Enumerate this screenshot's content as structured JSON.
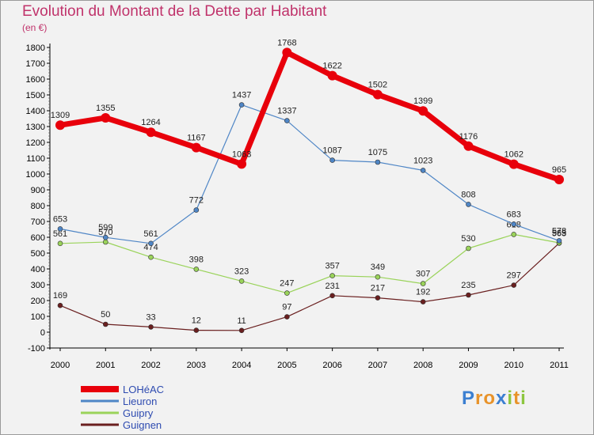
{
  "title": "Evolution du Montant de la Dette par Habitant",
  "subtitle": "(en €)",
  "logo": {
    "text": "Proxiti",
    "letters": [
      {
        "ch": "P",
        "color": "#3b7fd1"
      },
      {
        "ch": "r",
        "color": "#e8932a"
      },
      {
        "ch": "o",
        "color": "#e8932a"
      },
      {
        "ch": "x",
        "color": "#3b7fd1"
      },
      {
        "ch": "i",
        "color": "#8dc63f"
      },
      {
        "ch": "t",
        "color": "#e8932a"
      },
      {
        "ch": "i",
        "color": "#8dc63f"
      }
    ]
  },
  "chart_data": {
    "type": "line",
    "title": "Evolution du Montant de la Dette par Habitant",
    "subtitle": "(en €)",
    "x": [
      "2000",
      "2001",
      "2002",
      "2003",
      "2004",
      "2005",
      "2006",
      "2007",
      "2008",
      "2009",
      "2010",
      "2011"
    ],
    "ylim": [
      -100,
      1800
    ],
    "yticks": [
      -100,
      0,
      100,
      200,
      300,
      400,
      500,
      600,
      700,
      800,
      900,
      1000,
      1100,
      1200,
      1300,
      1400,
      1500,
      1600,
      1700,
      1800
    ],
    "grid": false,
    "legend_position": "bottom-left",
    "series": [
      {
        "name": "LOHéAC",
        "color": "#e8000b",
        "line_width": 7,
        "marker": "none",
        "values": [
          1309,
          1355,
          1264,
          1167,
          1063,
          1768,
          1622,
          1502,
          1399,
          1176,
          1062,
          965
        ]
      },
      {
        "name": "Lieuron",
        "color": "#4f86c6",
        "line_width": 1.2,
        "marker": "#4f86c6",
        "values": [
          653,
          599,
          561,
          772,
          1437,
          1337,
          1087,
          1075,
          1023,
          808,
          683,
          578
        ]
      },
      {
        "name": "Guipry",
        "color": "#9ad35a",
        "line_width": 1.2,
        "marker": "#9ad35a",
        "values": [
          561,
          570,
          474,
          398,
          323,
          247,
          357,
          349,
          307,
          530,
          618,
          565
        ]
      },
      {
        "name": "Guignen",
        "color": "#6a1f1f",
        "line_width": 1.2,
        "marker": "#6a1f1f",
        "values": [
          169,
          50,
          33,
          12,
          11,
          97,
          231,
          217,
          192,
          235,
          297,
          563
        ]
      }
    ]
  }
}
